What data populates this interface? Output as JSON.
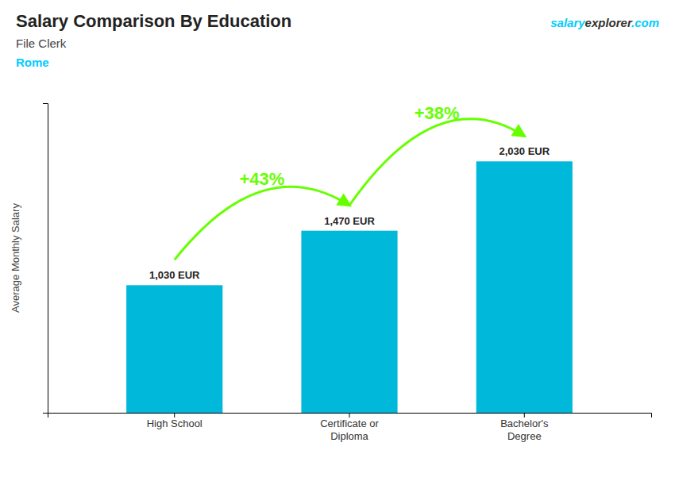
{
  "chart_data": {
    "type": "bar",
    "title": "Salary Comparison By Education",
    "subtitle": "File Clerk",
    "annotations": [
      {
        "text": "Rome",
        "color": "#00ccff"
      }
    ],
    "source": [
      {
        "text": "salary",
        "color": "#00ccff"
      },
      {
        "text": "explorer"
      },
      {
        "text": ".com",
        "color": "#00ccff"
      }
    ],
    "ylabel": "Average Monthly Salary",
    "categories": [
      "High School",
      "Certificate or\nDiploma",
      "Bachelor's\nDegree"
    ],
    "values": [
      1030,
      1470,
      2030
    ],
    "value_labels": [
      "1,030 EUR",
      "1,470 EUR",
      "2,030 EUR"
    ],
    "data_labels": true,
    "change_labels": [
      {
        "text": "+43%",
        "color": "#66ff00"
      },
      {
        "text": "+38%",
        "color": "#66ff00"
      }
    ],
    "color": "#00b8d9",
    "ylim": [
      0,
      2500
    ],
    "tick_labels": "x",
    "grid": false
  }
}
